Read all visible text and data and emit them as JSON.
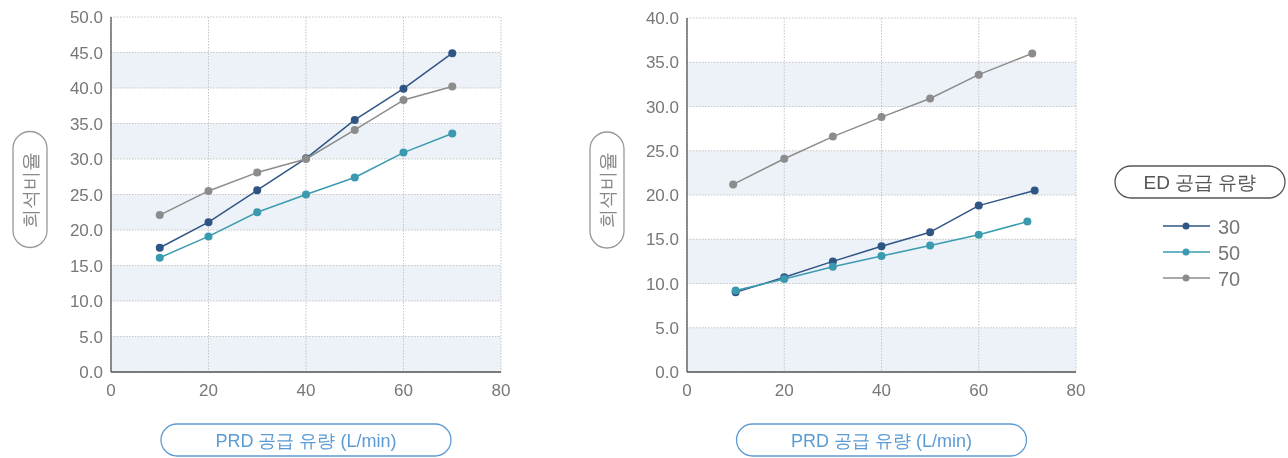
{
  "chart_data": [
    {
      "type": "line",
      "xlabel": "PRD 공급 유량 (L/min)",
      "ylabel": "희석비율",
      "xlim": [
        0,
        80
      ],
      "xticks": [
        0,
        20,
        40,
        60,
        80
      ],
      "ylim": [
        0,
        50
      ],
      "yticks": [
        {
          "value": 0,
          "label": "0.0"
        },
        {
          "value": 5,
          "label": "5.0"
        },
        {
          "value": 10,
          "label": "10.0"
        },
        {
          "value": 15,
          "label": "15.0"
        },
        {
          "value": 20,
          "label": "20.0"
        },
        {
          "value": 25,
          "label": "25.0"
        },
        {
          "value": 30,
          "label": "30.0"
        },
        {
          "value": 35,
          "label": "35.0"
        },
        {
          "value": 40,
          "label": "40.0"
        },
        {
          "value": 45,
          "label": "45.0"
        },
        {
          "value": 50,
          "label": "50.0"
        }
      ],
      "grid": true,
      "marker": "circle",
      "line_style": "solid",
      "bands": [
        {
          "axis": "y",
          "from": 0,
          "to": 5,
          "color": "#edf2f9"
        },
        {
          "axis": "y",
          "from": 10,
          "to": 15,
          "color": "#edf2f9"
        },
        {
          "axis": "y",
          "from": 20,
          "to": 25,
          "color": "#edf2f9"
        },
        {
          "axis": "y",
          "from": 30,
          "to": 35,
          "color": "#edf2f9"
        },
        {
          "axis": "y",
          "from": 40,
          "to": 45,
          "color": "#edf2f9"
        }
      ],
      "series": [
        {
          "color": "#2f5585",
          "x": [
            10,
            20,
            30,
            40,
            50,
            60,
            70
          ],
          "values": [
            17.5,
            21.1,
            25.6,
            30.1,
            35.5,
            39.9,
            44.9
          ]
        },
        {
          "color": "#3a9bb0",
          "x": [
            10,
            20,
            30,
            40,
            50,
            60,
            70
          ],
          "values": [
            16.1,
            19.1,
            22.5,
            25.0,
            27.4,
            30.9,
            33.6
          ]
        },
        {
          "color": "#8c8c8c",
          "x": [
            10,
            20,
            30,
            40,
            50,
            60,
            70
          ],
          "values": [
            22.1,
            25.5,
            28.1,
            30.0,
            34.1,
            38.3,
            40.2
          ]
        }
      ]
    },
    {
      "type": "line",
      "xlabel": "PRD 공급 유량 (L/min)",
      "ylabel": "희석비율",
      "legend_title": "ED 공급 유량",
      "legend": "right",
      "xlim": [
        0,
        80
      ],
      "xticks": [
        0,
        20,
        40,
        60,
        80
      ],
      "ylim": [
        0,
        40
      ],
      "yticks": [
        {
          "value": 0,
          "label": "0.0"
        },
        {
          "value": 5,
          "label": "5.0"
        },
        {
          "value": 10,
          "label": "10.0"
        },
        {
          "value": 15,
          "label": "15.0"
        },
        {
          "value": 20,
          "label": "20.0"
        },
        {
          "value": 25,
          "label": "25.0"
        },
        {
          "value": 30,
          "label": "30.0"
        },
        {
          "value": 35,
          "label": "35.0"
        },
        {
          "value": 40,
          "label": "40.0"
        }
      ],
      "grid": true,
      "marker": "circle",
      "line_style": "solid",
      "bands": [
        {
          "axis": "y",
          "from": 0,
          "to": 5,
          "color": "#edf2f9"
        },
        {
          "axis": "y",
          "from": 10,
          "to": 15,
          "color": "#edf2f9"
        },
        {
          "axis": "y",
          "from": 20,
          "to": 25,
          "color": "#edf2f9"
        },
        {
          "axis": "y",
          "from": 30,
          "to": 35,
          "color": "#edf2f9"
        }
      ],
      "series": [
        {
          "name": "30",
          "color": "#2f5585",
          "x": [
            10,
            20,
            30,
            40,
            50,
            60,
            71.5
          ],
          "values": [
            9.0,
            10.7,
            12.5,
            14.2,
            15.8,
            18.8,
            20.5
          ]
        },
        {
          "name": "50",
          "color": "#3a9bb0",
          "x": [
            10,
            20,
            30,
            40,
            50,
            60,
            70
          ],
          "values": [
            9.2,
            10.5,
            11.9,
            13.1,
            14.3,
            15.5,
            17.0
          ]
        },
        {
          "name": "70",
          "color": "#8c8c8c",
          "x": [
            9.5,
            20,
            30,
            40,
            50,
            60,
            71
          ],
          "values": [
            21.2,
            24.1,
            26.6,
            28.8,
            30.9,
            33.6,
            36.0
          ]
        }
      ]
    }
  ]
}
